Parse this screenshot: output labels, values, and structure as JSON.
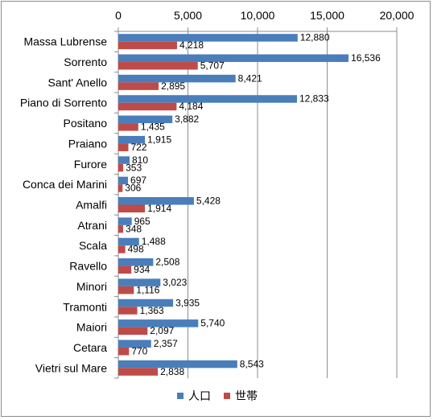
{
  "chart_data": {
    "type": "bar",
    "orientation": "horizontal",
    "categories": [
      "Massa Lubrense",
      "Sorrento",
      "Sant' Anello",
      "Piano di Sorrento",
      "Positano",
      "Praiano",
      "Furore",
      "Conca dei Marini",
      "Amalfi",
      "Atrani",
      "Scala",
      "Ravello",
      "Minori",
      "Tramonti",
      "Maiori",
      "Cetara",
      "Vietri sul Mare"
    ],
    "series": [
      {
        "name": "人口",
        "color": "#4a7ebb",
        "values": [
          12880,
          16536,
          8421,
          12833,
          3882,
          1915,
          810,
          697,
          5428,
          965,
          1488,
          2508,
          3023,
          3935,
          5740,
          2357,
          8543
        ],
        "labels": [
          "12,880",
          "16,536",
          "8,421",
          "12,833",
          "3,882",
          "1,915",
          "810",
          "697",
          "5,428",
          "965",
          "1,488",
          "2,508",
          "3,023",
          "3,935",
          "5,740",
          "2,357",
          "8,543"
        ]
      },
      {
        "name": "世帯",
        "color": "#be4b48",
        "values": [
          4218,
          5707,
          2895,
          4184,
          1435,
          722,
          353,
          306,
          1914,
          348,
          498,
          934,
          1116,
          1363,
          2097,
          770,
          2838
        ],
        "labels": [
          "4,218",
          "5,707",
          "2,895",
          "4,184",
          "1,435",
          "722",
          "353",
          "306",
          "1,914",
          "348",
          "498",
          "934",
          "1,116",
          "1,363",
          "2,097",
          "770",
          "2,838"
        ]
      }
    ],
    "xlim": [
      0,
      20000
    ],
    "xticks": [
      0,
      5000,
      10000,
      15000,
      20000
    ],
    "xtick_labels": [
      "0",
      "5,000",
      "10,000",
      "15,000",
      "20,000"
    ],
    "x_axis_position": "top",
    "grid": "vertical",
    "legend": "bottom",
    "title": "",
    "xlabel": "",
    "ylabel": ""
  }
}
